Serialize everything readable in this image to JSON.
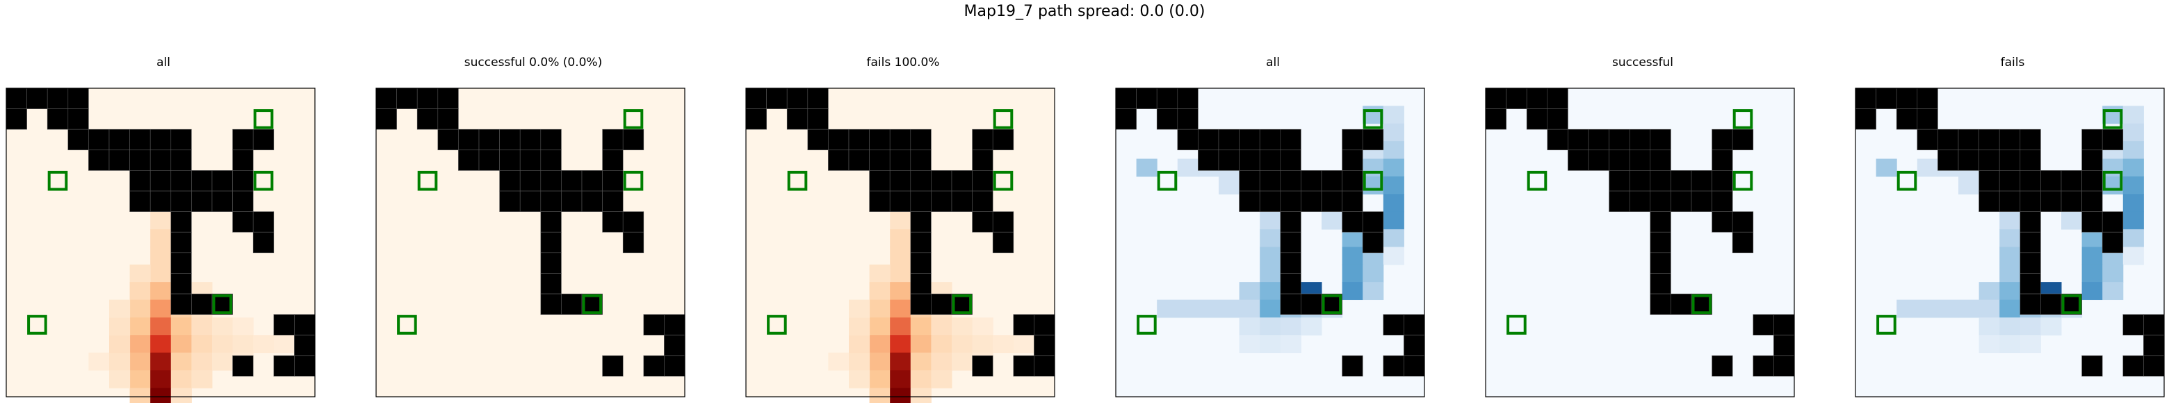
{
  "figure": {
    "title": "Map19_7 path spread: 0.0 (0.0)"
  },
  "chart_data": {
    "type": "heatmap",
    "grid_size": 15,
    "obstacles": [
      [
        0,
        0
      ],
      [
        0,
        1
      ],
      [
        0,
        2
      ],
      [
        0,
        3
      ],
      [
        1,
        0
      ],
      [
        1,
        2
      ],
      [
        1,
        3
      ],
      [
        2,
        3
      ],
      [
        2,
        4
      ],
      [
        2,
        5
      ],
      [
        2,
        6
      ],
      [
        2,
        7
      ],
      [
        2,
        8
      ],
      [
        2,
        11
      ],
      [
        2,
        12
      ],
      [
        3,
        4
      ],
      [
        3,
        5
      ],
      [
        3,
        6
      ],
      [
        3,
        7
      ],
      [
        3,
        8
      ],
      [
        3,
        11
      ],
      [
        4,
        6
      ],
      [
        4,
        7
      ],
      [
        4,
        8
      ],
      [
        4,
        9
      ],
      [
        4,
        10
      ],
      [
        4,
        11
      ],
      [
        5,
        6
      ],
      [
        5,
        7
      ],
      [
        5,
        8
      ],
      [
        5,
        9
      ],
      [
        5,
        10
      ],
      [
        5,
        11
      ],
      [
        6,
        8
      ],
      [
        6,
        11
      ],
      [
        6,
        12
      ],
      [
        7,
        8
      ],
      [
        7,
        12
      ],
      [
        8,
        8
      ],
      [
        9,
        8
      ],
      [
        10,
        8
      ],
      [
        10,
        9
      ],
      [
        10,
        10
      ],
      [
        11,
        13
      ],
      [
        11,
        14
      ],
      [
        12,
        14
      ],
      [
        13,
        11
      ],
      [
        13,
        13
      ],
      [
        13,
        14
      ]
    ],
    "markers": [
      [
        1,
        12
      ],
      [
        4,
        2
      ],
      [
        4,
        12
      ],
      [
        10,
        10
      ],
      [
        11,
        1
      ]
    ],
    "marker_color": "#008000",
    "obstacle_color": "#000000",
    "panels": [
      {
        "title": "all",
        "colormap": "Oranges-Red",
        "cells": [
          [
            7,
            7,
            0.1
          ],
          [
            8,
            7,
            0.15
          ],
          [
            9,
            7,
            0.15
          ],
          [
            10,
            7,
            0.15
          ],
          [
            10,
            6,
            0.1
          ],
          [
            11,
            6,
            0.15
          ],
          [
            11,
            7,
            0.3
          ],
          [
            11,
            8,
            0.12
          ],
          [
            11,
            9,
            0.08
          ],
          [
            12,
            6,
            0.2
          ],
          [
            12,
            7,
            0.45
          ],
          [
            12,
            8,
            0.2
          ],
          [
            12,
            9,
            0.1
          ],
          [
            13,
            6,
            0.25
          ],
          [
            13,
            7,
            0.6
          ],
          [
            13,
            8,
            0.25
          ],
          [
            13,
            9,
            0.12
          ],
          [
            13,
            10,
            0.08
          ],
          [
            13,
            11,
            0.05
          ],
          [
            14,
            6,
            0.35
          ],
          [
            14,
            7,
            0.75
          ],
          [
            14,
            8,
            0.3
          ],
          [
            14,
            9,
            0.15
          ],
          [
            14,
            10,
            0.1
          ],
          [
            14,
            11,
            0.08
          ],
          [
            14,
            12,
            0.06
          ],
          [
            14,
            13,
            0.05
          ],
          [
            15,
            6,
            0.3
          ],
          [
            15,
            7,
            0.9
          ],
          [
            15,
            8,
            0.2
          ],
          [
            15,
            9,
            0.12
          ],
          [
            15,
            10,
            0.08
          ],
          [
            15,
            11,
            0.06
          ],
          [
            16,
            6,
            0.25
          ],
          [
            16,
            7,
            0.95
          ],
          [
            16,
            8,
            0.15
          ],
          [
            16,
            9,
            0.1
          ],
          [
            17,
            6,
            0.18
          ],
          [
            17,
            7,
            1.0
          ],
          [
            17,
            8,
            0.1
          ],
          [
            15,
            4,
            0.05
          ],
          [
            15,
            5,
            0.1
          ],
          [
            16,
            5,
            0.08
          ],
          [
            14,
            5,
            0.12
          ],
          [
            13,
            5,
            0.1
          ],
          [
            12,
            5,
            0.08
          ]
        ]
      },
      {
        "title": "successful 0.0% (0.0%)",
        "colormap": "Oranges-Red",
        "cells": []
      },
      {
        "title": "fails 100.0%",
        "colormap": "Oranges-Red",
        "cells": [
          [
            7,
            7,
            0.1
          ],
          [
            8,
            7,
            0.15
          ],
          [
            9,
            7,
            0.15
          ],
          [
            10,
            7,
            0.15
          ],
          [
            10,
            6,
            0.1
          ],
          [
            11,
            6,
            0.15
          ],
          [
            11,
            7,
            0.3
          ],
          [
            11,
            8,
            0.12
          ],
          [
            11,
            9,
            0.08
          ],
          [
            12,
            6,
            0.2
          ],
          [
            12,
            7,
            0.45
          ],
          [
            12,
            8,
            0.2
          ],
          [
            12,
            9,
            0.1
          ],
          [
            13,
            6,
            0.25
          ],
          [
            13,
            7,
            0.6
          ],
          [
            13,
            8,
            0.25
          ],
          [
            13,
            9,
            0.12
          ],
          [
            13,
            10,
            0.08
          ],
          [
            13,
            11,
            0.05
          ],
          [
            14,
            6,
            0.35
          ],
          [
            14,
            7,
            0.75
          ],
          [
            14,
            8,
            0.3
          ],
          [
            14,
            9,
            0.15
          ],
          [
            14,
            10,
            0.1
          ],
          [
            14,
            11,
            0.08
          ],
          [
            14,
            12,
            0.06
          ],
          [
            14,
            13,
            0.05
          ],
          [
            15,
            6,
            0.3
          ],
          [
            15,
            7,
            0.9
          ],
          [
            15,
            8,
            0.2
          ],
          [
            15,
            9,
            0.12
          ],
          [
            15,
            10,
            0.08
          ],
          [
            15,
            11,
            0.06
          ],
          [
            16,
            6,
            0.25
          ],
          [
            16,
            7,
            0.95
          ],
          [
            16,
            8,
            0.15
          ],
          [
            16,
            9,
            0.1
          ],
          [
            17,
            6,
            0.18
          ],
          [
            17,
            7,
            1.0
          ],
          [
            17,
            8,
            0.1
          ],
          [
            15,
            4,
            0.05
          ],
          [
            15,
            5,
            0.1
          ],
          [
            16,
            5,
            0.08
          ],
          [
            14,
            5,
            0.12
          ],
          [
            13,
            5,
            0.1
          ],
          [
            12,
            5,
            0.08
          ]
        ]
      },
      {
        "title": "all",
        "colormap": "Blues",
        "cells": [
          [
            1,
            12,
            0.35
          ],
          [
            1,
            13,
            0.2
          ],
          [
            2,
            13,
            0.25
          ],
          [
            3,
            12,
            0.2
          ],
          [
            3,
            13,
            0.3
          ],
          [
            4,
            1,
            0.35
          ],
          [
            4,
            3,
            0.18
          ],
          [
            4,
            4,
            0.18
          ],
          [
            4,
            5,
            0.18
          ],
          [
            4,
            12,
            0.35
          ],
          [
            4,
            13,
            0.45
          ],
          [
            5,
            5,
            0.18
          ],
          [
            5,
            6,
            0.18
          ],
          [
            5,
            7,
            0.18
          ],
          [
            5,
            12,
            0.4
          ],
          [
            5,
            13,
            0.55
          ],
          [
            6,
            7,
            0.2
          ],
          [
            6,
            13,
            0.6
          ],
          [
            7,
            7,
            0.25
          ],
          [
            7,
            10,
            0.2
          ],
          [
            7,
            11,
            0.2
          ],
          [
            7,
            13,
            0.6
          ],
          [
            8,
            7,
            0.3
          ],
          [
            8,
            11,
            0.45
          ],
          [
            8,
            12,
            0.5
          ],
          [
            8,
            13,
            0.3
          ],
          [
            9,
            7,
            0.35
          ],
          [
            9,
            11,
            0.55
          ],
          [
            9,
            12,
            0.35
          ],
          [
            9,
            13,
            0.1
          ],
          [
            10,
            7,
            0.35
          ],
          [
            10,
            11,
            0.55
          ],
          [
            10,
            12,
            0.35
          ],
          [
            11,
            6,
            0.3
          ],
          [
            11,
            7,
            0.45
          ],
          [
            11,
            8,
            0.75
          ],
          [
            11,
            9,
            0.85
          ],
          [
            11,
            11,
            0.6
          ],
          [
            11,
            12,
            0.3
          ],
          [
            12,
            2,
            0.25
          ],
          [
            12,
            3,
            0.25
          ],
          [
            12,
            4,
            0.25
          ],
          [
            12,
            5,
            0.25
          ],
          [
            12,
            6,
            0.25
          ],
          [
            12,
            7,
            0.5
          ],
          [
            12,
            8,
            0.35
          ],
          [
            12,
            9,
            0.28
          ],
          [
            12,
            10,
            0.2
          ],
          [
            13,
            6,
            0.15
          ],
          [
            13,
            7,
            0.2
          ],
          [
            13,
            8,
            0.18
          ],
          [
            13,
            9,
            0.12
          ],
          [
            14,
            6,
            0.1
          ],
          [
            14,
            7,
            0.12
          ],
          [
            14,
            8,
            0.1
          ]
        ]
      },
      {
        "title": "successful",
        "colormap": "Blues",
        "cells": []
      },
      {
        "title": "fails",
        "colormap": "Blues",
        "cells": [
          [
            1,
            12,
            0.35
          ],
          [
            1,
            13,
            0.2
          ],
          [
            2,
            13,
            0.25
          ],
          [
            3,
            12,
            0.2
          ],
          [
            3,
            13,
            0.3
          ],
          [
            4,
            1,
            0.35
          ],
          [
            4,
            3,
            0.18
          ],
          [
            4,
            4,
            0.18
          ],
          [
            4,
            5,
            0.18
          ],
          [
            4,
            12,
            0.35
          ],
          [
            4,
            13,
            0.45
          ],
          [
            5,
            5,
            0.18
          ],
          [
            5,
            6,
            0.18
          ],
          [
            5,
            7,
            0.18
          ],
          [
            5,
            12,
            0.4
          ],
          [
            5,
            13,
            0.55
          ],
          [
            6,
            7,
            0.2
          ],
          [
            6,
            13,
            0.6
          ],
          [
            7,
            7,
            0.25
          ],
          [
            7,
            10,
            0.2
          ],
          [
            7,
            11,
            0.2
          ],
          [
            7,
            13,
            0.6
          ],
          [
            8,
            7,
            0.3
          ],
          [
            8,
            11,
            0.45
          ],
          [
            8,
            12,
            0.5
          ],
          [
            8,
            13,
            0.3
          ],
          [
            9,
            7,
            0.35
          ],
          [
            9,
            11,
            0.55
          ],
          [
            9,
            12,
            0.35
          ],
          [
            9,
            13,
            0.1
          ],
          [
            10,
            7,
            0.35
          ],
          [
            10,
            11,
            0.55
          ],
          [
            10,
            12,
            0.35
          ],
          [
            11,
            6,
            0.3
          ],
          [
            11,
            7,
            0.45
          ],
          [
            11,
            8,
            0.75
          ],
          [
            11,
            9,
            0.85
          ],
          [
            11,
            11,
            0.6
          ],
          [
            11,
            12,
            0.3
          ],
          [
            12,
            2,
            0.25
          ],
          [
            12,
            3,
            0.25
          ],
          [
            12,
            4,
            0.25
          ],
          [
            12,
            5,
            0.25
          ],
          [
            12,
            6,
            0.25
          ],
          [
            12,
            7,
            0.5
          ],
          [
            12,
            8,
            0.35
          ],
          [
            12,
            9,
            0.28
          ],
          [
            12,
            10,
            0.2
          ],
          [
            13,
            6,
            0.15
          ],
          [
            13,
            7,
            0.2
          ],
          [
            13,
            8,
            0.18
          ],
          [
            13,
            9,
            0.12
          ],
          [
            14,
            6,
            0.1
          ],
          [
            14,
            7,
            0.12
          ],
          [
            14,
            8,
            0.1
          ]
        ]
      }
    ]
  }
}
